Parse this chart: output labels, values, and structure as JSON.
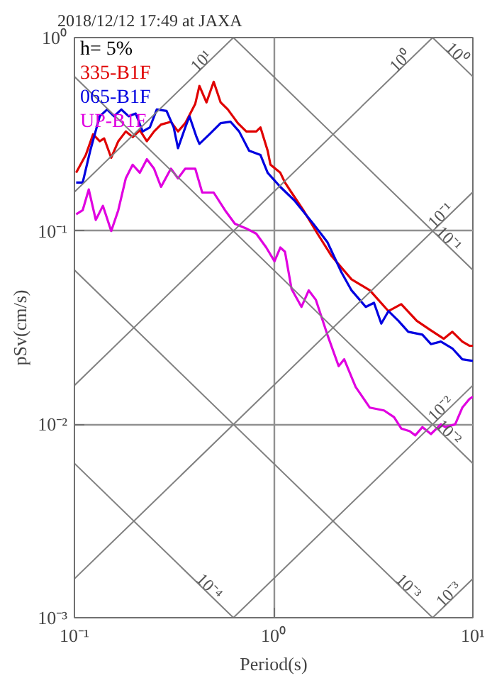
{
  "chart_data": {
    "type": "line",
    "title": "2018/12/12 17:49 at JAXA",
    "xlabel": "Period(s)",
    "ylabel": "pSv(cm/s)",
    "log": "xy",
    "grid": true,
    "legend": "top left",
    "annotations": [
      "h= 5%"
    ],
    "xlim": [
      0.1,
      10
    ],
    "ylim": [
      0.001,
      1
    ],
    "xticks": [
      {
        "value": 0.1,
        "label": "10⁻¹"
      },
      {
        "value": 1,
        "label": "10⁰"
      },
      {
        "value": 10,
        "label": "10¹"
      }
    ],
    "yticks": [
      {
        "value": 0.001,
        "label": "10⁻³"
      },
      {
        "value": 0.01,
        "label": "10⁻²"
      },
      {
        "value": 0.1,
        "label": "10⁻¹"
      },
      {
        "value": 1,
        "label": "10⁰"
      }
    ],
    "series": [
      {
        "name": "335-B1F",
        "color": "#e00000",
        "x": [
          0.102,
          0.114,
          0.124,
          0.134,
          0.141,
          0.153,
          0.166,
          0.181,
          0.196,
          0.213,
          0.231,
          0.251,
          0.272,
          0.305,
          0.331,
          0.36,
          0.404,
          0.424,
          0.46,
          0.5,
          0.542,
          0.589,
          0.661,
          0.729,
          0.818,
          0.859,
          0.933,
          0.964,
          1.08,
          1.14,
          1.23,
          1.41,
          1.66,
          1.95,
          2.46,
          3.04,
          3.77,
          4.37,
          5.23,
          6.16,
          7.14,
          7.89,
          8.85,
          9.6,
          10
        ],
        "values": [
          0.2,
          0.247,
          0.316,
          0.291,
          0.301,
          0.239,
          0.291,
          0.327,
          0.306,
          0.332,
          0.291,
          0.327,
          0.355,
          0.367,
          0.327,
          0.361,
          0.454,
          0.562,
          0.462,
          0.591,
          0.462,
          0.425,
          0.361,
          0.327,
          0.327,
          0.343,
          0.26,
          0.22,
          0.2,
          0.178,
          0.158,
          0.128,
          0.0968,
          0.0744,
          0.0562,
          0.0493,
          0.0385,
          0.0418,
          0.0343,
          0.0306,
          0.0277,
          0.0301,
          0.0268,
          0.0255,
          0.0255
        ]
      },
      {
        "name": "065-B1F",
        "color": "#0000e0",
        "x": [
          0.102,
          0.11,
          0.12,
          0.134,
          0.146,
          0.158,
          0.172,
          0.187,
          0.203,
          0.22,
          0.239,
          0.259,
          0.29,
          0.315,
          0.331,
          0.36,
          0.378,
          0.41,
          0.424,
          0.476,
          0.542,
          0.608,
          0.671,
          0.753,
          0.859,
          0.933,
          1.08,
          1.27,
          1.58,
          1.86,
          2.19,
          2.46,
          2.9,
          3.19,
          3.47,
          3.77,
          4.23,
          4.74,
          5.58,
          6.16,
          6.91,
          7.89,
          8.85,
          10
        ],
        "values": [
          0.178,
          0.178,
          0.26,
          0.392,
          0.425,
          0.392,
          0.425,
          0.392,
          0.405,
          0.327,
          0.343,
          0.425,
          0.418,
          0.343,
          0.268,
          0.343,
          0.392,
          0.306,
          0.282,
          0.316,
          0.361,
          0.367,
          0.327,
          0.26,
          0.247,
          0.2,
          0.169,
          0.144,
          0.109,
          0.0877,
          0.0611,
          0.0493,
          0.0405,
          0.0425,
          0.0332,
          0.0385,
          0.0343,
          0.0301,
          0.0291,
          0.026,
          0.0268,
          0.0247,
          0.0217,
          0.0213
        ]
      },
      {
        "name": "UP-B1F",
        "color": "#e000e0",
        "x": [
          0.102,
          0.11,
          0.118,
          0.128,
          0.139,
          0.153,
          0.166,
          0.181,
          0.196,
          0.213,
          0.231,
          0.251,
          0.272,
          0.305,
          0.331,
          0.36,
          0.404,
          0.438,
          0.5,
          0.57,
          0.639,
          0.729,
          0.818,
          0.918,
          1.01,
          1.08,
          1.14,
          1.23,
          1.38,
          1.5,
          1.63,
          1.86,
          2.12,
          2.26,
          2.58,
          3.04,
          3.58,
          4.02,
          4.37,
          4.82,
          5.14,
          5.58,
          6.16,
          6.91,
          7.26,
          8.15,
          8.85,
          9.6,
          10
        ],
        "values": [
          0.122,
          0.128,
          0.164,
          0.114,
          0.135,
          0.1,
          0.128,
          0.187,
          0.22,
          0.2,
          0.235,
          0.21,
          0.169,
          0.21,
          0.187,
          0.21,
          0.21,
          0.158,
          0.158,
          0.128,
          0.109,
          0.103,
          0.0968,
          0.0821,
          0.0697,
          0.0821,
          0.0781,
          0.0501,
          0.0405,
          0.0493,
          0.044,
          0.0291,
          0.02,
          0.0217,
          0.0156,
          0.0122,
          0.0118,
          0.0109,
          0.00952,
          0.00921,
          0.00877,
          0.00968,
          0.00891,
          0.01,
          0.00968,
          0.01,
          0.0122,
          0.0135,
          0.0139
        ]
      },
      {
        "name": "10¹",
        "color": "#808080",
        "x": [
          0.1,
          0.628
        ],
        "values": [
          0.159,
          1
        ]
      },
      {
        "name": "10⁰",
        "color": "#808080",
        "x": [
          0.1,
          6.28
        ],
        "values": [
          0.0159,
          1
        ]
      },
      {
        "name": "10⁻¹",
        "color": "#808080",
        "x": [
          0.1,
          10
        ],
        "values": [
          0.00159,
          0.159
        ]
      },
      {
        "name": "10⁻²",
        "color": "#808080",
        "x": [
          0.628,
          10
        ],
        "values": [
          0.001,
          0.0159
        ]
      },
      {
        "name": "10⁻³",
        "color": "#808080",
        "x": [
          6.28,
          10
        ],
        "values": [
          0.001,
          0.00159
        ]
      },
      {
        "name": "10⁰",
        "color": "#808080",
        "x": [
          6.28,
          10
        ],
        "values": [
          1,
          0.628
        ]
      },
      {
        "name": "10⁻¹",
        "color": "#808080",
        "x": [
          0.628,
          10
        ],
        "values": [
          1,
          0.0628
        ]
      },
      {
        "name": "10⁻²",
        "color": "#808080",
        "x": [
          0.1,
          10
        ],
        "values": [
          0.628,
          0.00628
        ]
      },
      {
        "name": "10⁻³",
        "color": "#808080",
        "x": [
          0.1,
          6.28
        ],
        "values": [
          0.0628,
          0.001
        ]
      },
      {
        "name": "10⁻⁴",
        "color": "#808080",
        "x": [
          0.1,
          0.628
        ],
        "values": [
          0.00628,
          0.001
        ]
      }
    ]
  }
}
